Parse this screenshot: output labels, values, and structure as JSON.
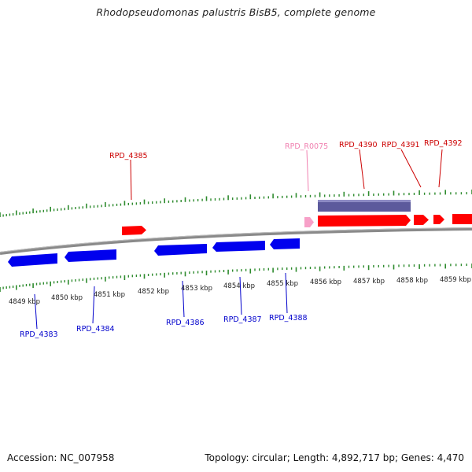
{
  "title": "Rhodopseudomonas palustris BisB5, complete genome",
  "footer": {
    "accession": "Accession: NC_007958",
    "summary": "Topology: circular; Length: 4,892,717 bp; Genes: 4,470"
  },
  "colors": {
    "backbone": "#8a8a8a",
    "tick": "#2e8b2e",
    "forward_gene": "#ff0000",
    "reverse_gene": "#0000ee",
    "rna_gene": "#f7a0c8",
    "region_bar": "#5c5a9c",
    "forward_label": "#cc0000",
    "reverse_label": "#0000cc",
    "rna_label": "#f080b0"
  },
  "scale_labels": [
    "4849 kbp",
    "4850 kbp",
    "4851 kbp",
    "4852 kbp",
    "4853 kbp",
    "4854 kbp",
    "4855 kbp",
    "4856 kbp",
    "4857 kbp",
    "4858 kbp",
    "4859 kbp"
  ],
  "gene_labels": {
    "forward": [
      "RPD_4385",
      "RPD_4390",
      "RPD_4391",
      "RPD_4392"
    ],
    "rna": [
      "RPD_R0075"
    ],
    "reverse": [
      "RPD_4383",
      "RPD_4384",
      "RPD_4386",
      "RPD_4387",
      "RPD_4388"
    ]
  }
}
